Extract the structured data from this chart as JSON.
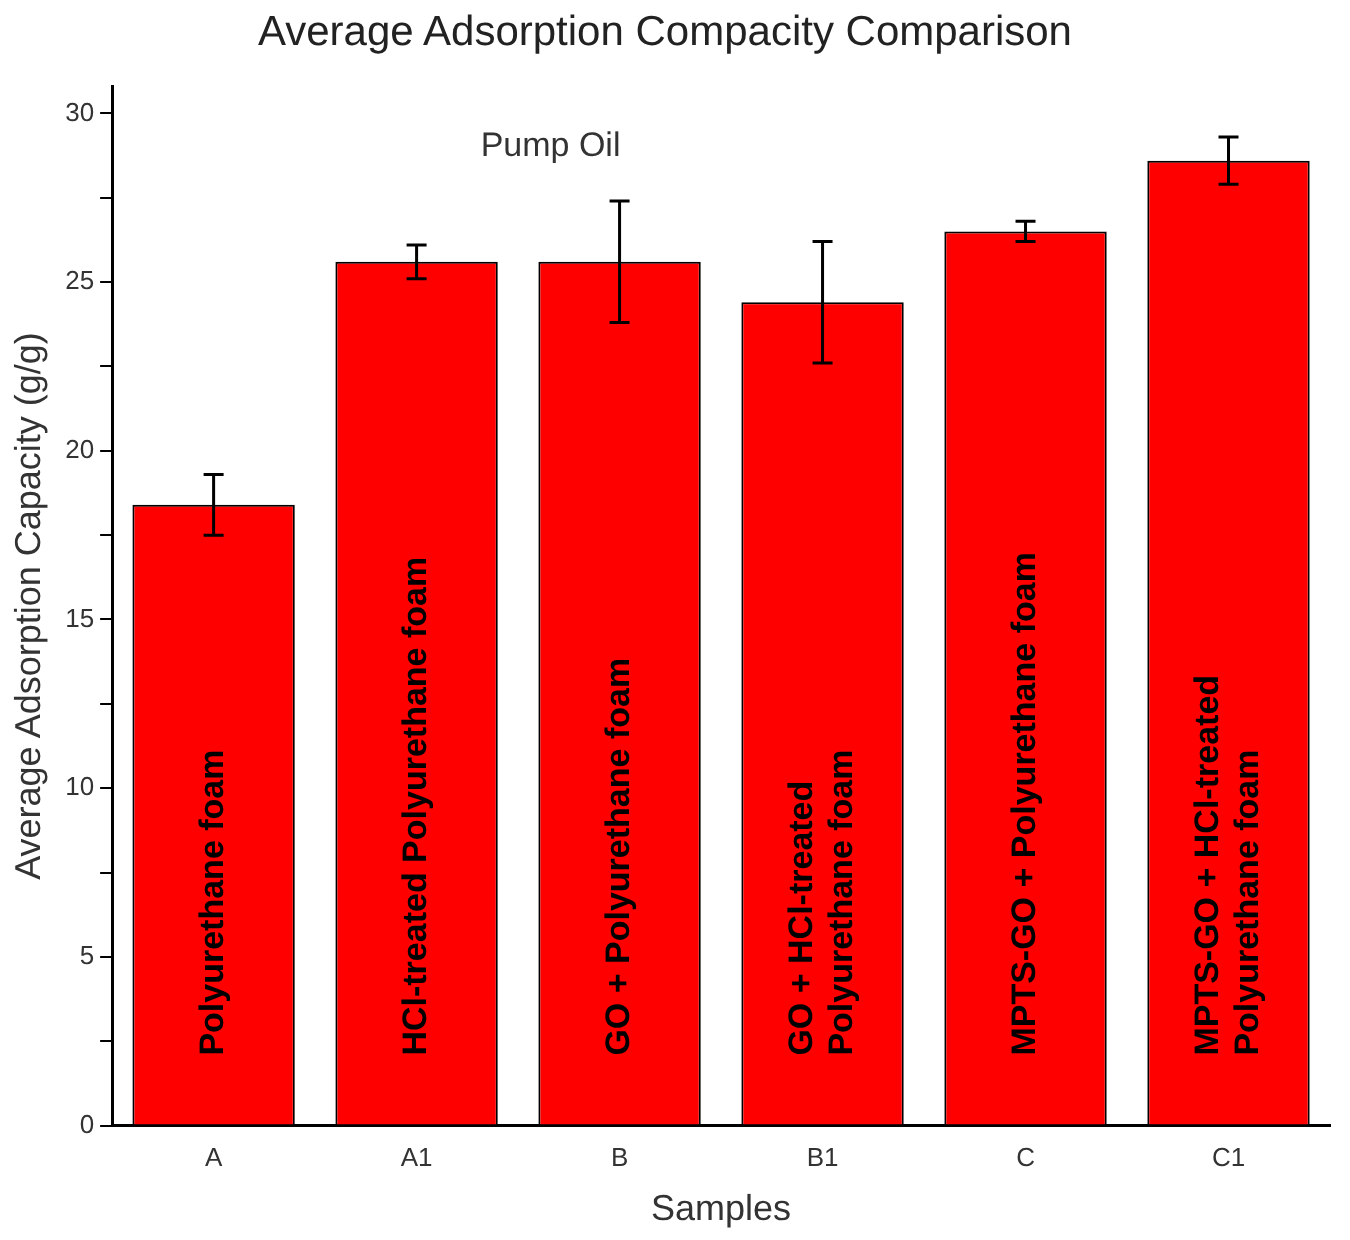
{
  "chart_data": {
    "type": "bar",
    "title": "Average Adsorption Compacity Comparison",
    "xlabel": "Samples",
    "ylabel": "Average Adsorption Capacity (g/g)",
    "categories": [
      "A",
      "A1",
      "B",
      "B1",
      "C",
      "C1"
    ],
    "values": [
      18.4,
      25.6,
      25.6,
      24.4,
      26.5,
      28.6
    ],
    "errors": [
      0.9,
      0.5,
      1.8,
      1.8,
      0.3,
      0.7
    ],
    "color": "#ff0000",
    "ylim": [
      0,
      30.8
    ],
    "yticks": [
      0,
      {
        "value": 2.5,
        "label": null
      },
      5,
      {
        "value": 7.5,
        "label": null
      },
      10,
      {
        "value": 12.5,
        "label": null
      },
      15,
      {
        "value": 17.5,
        "label": null
      },
      20,
      {
        "value": 22.5,
        "label": null
      },
      25,
      {
        "value": 27.5,
        "label": null
      },
      30
    ],
    "grid": false,
    "legend": false,
    "annotations": [
      "Pump Oil",
      "Polyurethane foam",
      "HCl-treated Polyurethane foam",
      "GO + Polyurethane foam",
      "GO + HCl-treated\nPolyurethane foam",
      "MPTS-GO + Polyurethane foam",
      "MPTS-GO + HCl-treated\nPolyurethane foam"
    ]
  }
}
